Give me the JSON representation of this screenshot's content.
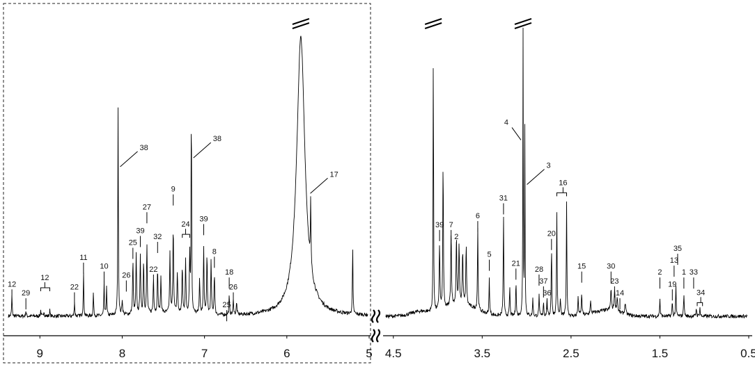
{
  "chart_data": {
    "type": "line",
    "title": "",
    "xlabel": "",
    "ylabel": "",
    "x_axis_reversed": true,
    "x_axis_broken": true,
    "grid": false,
    "left_panel": {
      "xlim": [
        9.4,
        5.0
      ],
      "boxed": true
    },
    "right_panel": {
      "xlim": [
        4.6,
        0.5
      ]
    },
    "tick_labels": [
      {
        "panel": "left",
        "value": 9,
        "label": "9"
      },
      {
        "panel": "left",
        "value": 8,
        "label": "8"
      },
      {
        "panel": "left",
        "value": 7,
        "label": "7"
      },
      {
        "panel": "left",
        "value": 6,
        "label": "6"
      },
      {
        "panel": "left",
        "value": 5,
        "label": "5"
      },
      {
        "panel": "right",
        "value": 4.5,
        "label": "4.5"
      },
      {
        "panel": "right",
        "value": 3.5,
        "label": "3.5"
      },
      {
        "panel": "right",
        "value": 2.5,
        "label": "2.5"
      },
      {
        "panel": "right",
        "value": 1.5,
        "label": "1.5"
      },
      {
        "panel": "right",
        "value": 0.5,
        "label": "0.5"
      }
    ],
    "peaks": [
      {
        "panel": "left",
        "ppm": 9.34,
        "height": 0.07,
        "width": 0.004
      },
      {
        "panel": "left",
        "ppm": 9.17,
        "height": 0.02,
        "width": 0.004
      },
      {
        "panel": "left",
        "ppm": 8.99,
        "height": 0.02,
        "width": 0.004
      },
      {
        "panel": "left",
        "ppm": 8.95,
        "height": 0.02,
        "width": 0.004
      },
      {
        "panel": "left",
        "ppm": 8.88,
        "height": 0.02,
        "width": 0.004
      },
      {
        "panel": "left",
        "ppm": 8.58,
        "height": 0.05,
        "width": 0.004
      },
      {
        "panel": "left",
        "ppm": 8.47,
        "height": 0.15,
        "width": 0.004
      },
      {
        "panel": "left",
        "ppm": 8.35,
        "height": 0.08,
        "width": 0.004
      },
      {
        "panel": "left",
        "ppm": 8.22,
        "height": 0.11,
        "width": 0.004
      },
      {
        "panel": "left",
        "ppm": 8.19,
        "height": 0.1,
        "width": 0.004
      },
      {
        "panel": "left",
        "ppm": 8.05,
        "height": 0.7,
        "width": 0.004
      },
      {
        "panel": "left",
        "ppm": 8.0,
        "height": 0.05,
        "width": 0.005
      },
      {
        "panel": "left",
        "ppm": 7.87,
        "height": 0.18,
        "width": 0.005
      },
      {
        "panel": "left",
        "ppm": 7.83,
        "height": 0.2,
        "width": 0.005
      },
      {
        "panel": "left",
        "ppm": 7.78,
        "height": 0.2,
        "width": 0.005
      },
      {
        "panel": "left",
        "ppm": 7.74,
        "height": 0.18,
        "width": 0.005
      },
      {
        "panel": "left",
        "ppm": 7.7,
        "height": 0.23,
        "width": 0.005
      },
      {
        "panel": "left",
        "ppm": 7.62,
        "height": 0.12,
        "width": 0.005
      },
      {
        "panel": "left",
        "ppm": 7.57,
        "height": 0.15,
        "width": 0.005
      },
      {
        "panel": "left",
        "ppm": 7.53,
        "height": 0.12,
        "width": 0.005
      },
      {
        "panel": "left",
        "ppm": 7.42,
        "height": 0.2,
        "width": 0.005
      },
      {
        "panel": "left",
        "ppm": 7.38,
        "height": 0.3,
        "width": 0.005
      },
      {
        "panel": "left",
        "ppm": 7.33,
        "height": 0.14,
        "width": 0.005
      },
      {
        "panel": "left",
        "ppm": 7.27,
        "height": 0.16,
        "width": 0.005
      },
      {
        "panel": "left",
        "ppm": 7.23,
        "height": 0.18,
        "width": 0.005
      },
      {
        "panel": "left",
        "ppm": 7.18,
        "height": 0.2,
        "width": 0.005
      },
      {
        "panel": "left",
        "ppm": 7.16,
        "height": 0.72,
        "width": 0.004
      },
      {
        "panel": "left",
        "ppm": 7.06,
        "height": 0.12,
        "width": 0.005
      },
      {
        "panel": "left",
        "ppm": 7.01,
        "height": 0.22,
        "width": 0.005
      },
      {
        "panel": "left",
        "ppm": 6.97,
        "height": 0.2,
        "width": 0.005
      },
      {
        "panel": "left",
        "ppm": 6.92,
        "height": 0.18,
        "width": 0.005
      },
      {
        "panel": "left",
        "ppm": 6.88,
        "height": 0.14,
        "width": 0.005
      },
      {
        "panel": "left",
        "ppm": 6.7,
        "height": 0.06,
        "width": 0.005
      },
      {
        "panel": "left",
        "ppm": 6.65,
        "height": 0.05,
        "width": 0.005
      },
      {
        "panel": "left",
        "ppm": 6.61,
        "height": 0.04,
        "width": 0.005
      },
      {
        "panel": "left",
        "ppm": 5.83,
        "height": 0.94,
        "width": 0.06
      },
      {
        "panel": "left",
        "ppm": 5.71,
        "height": 0.22,
        "width": 0.004
      },
      {
        "panel": "left",
        "ppm": 5.2,
        "height": 0.23,
        "width": 0.004
      },
      {
        "panel": "right",
        "ppm": 4.05,
        "height": 0.96,
        "width": 0.003
      },
      {
        "panel": "right",
        "ppm": 3.98,
        "height": 0.22,
        "width": 0.005
      },
      {
        "panel": "right",
        "ppm": 3.94,
        "height": 0.52,
        "width": 0.004
      },
      {
        "panel": "right",
        "ppm": 3.85,
        "height": 0.25,
        "width": 0.005
      },
      {
        "panel": "right",
        "ppm": 3.79,
        "height": 0.22,
        "width": 0.005
      },
      {
        "panel": "right",
        "ppm": 3.76,
        "height": 0.2,
        "width": 0.005
      },
      {
        "panel": "right",
        "ppm": 3.72,
        "height": 0.18,
        "width": 0.005
      },
      {
        "panel": "right",
        "ppm": 3.68,
        "height": 0.2,
        "width": 0.005
      },
      {
        "panel": "right",
        "ppm": 3.55,
        "height": 0.28,
        "width": 0.004
      },
      {
        "panel": "right",
        "ppm": 3.42,
        "height": 0.12,
        "width": 0.004
      },
      {
        "panel": "right",
        "ppm": 3.26,
        "height": 0.34,
        "width": 0.004
      },
      {
        "panel": "right",
        "ppm": 3.19,
        "height": 0.1,
        "width": 0.004
      },
      {
        "panel": "right",
        "ppm": 3.12,
        "height": 0.12,
        "width": 0.004
      },
      {
        "panel": "right",
        "ppm": 3.04,
        "height": 0.96,
        "width": 0.003
      },
      {
        "panel": "right",
        "ppm": 3.02,
        "height": 0.64,
        "width": 0.003
      },
      {
        "panel": "right",
        "ppm": 2.93,
        "height": 0.06,
        "width": 0.004
      },
      {
        "panel": "right",
        "ppm": 2.86,
        "height": 0.07,
        "width": 0.004
      },
      {
        "panel": "right",
        "ppm": 2.81,
        "height": 0.05,
        "width": 0.004
      },
      {
        "panel": "right",
        "ppm": 2.77,
        "height": 0.06,
        "width": 0.004
      },
      {
        "panel": "right",
        "ppm": 2.72,
        "height": 0.24,
        "width": 0.004
      },
      {
        "panel": "right",
        "ppm": 2.66,
        "height": 0.35,
        "width": 0.004
      },
      {
        "panel": "right",
        "ppm": 2.62,
        "height": 0.06,
        "width": 0.004
      },
      {
        "panel": "right",
        "ppm": 2.55,
        "height": 0.38,
        "width": 0.004
      },
      {
        "panel": "right",
        "ppm": 2.42,
        "height": 0.06,
        "width": 0.005
      },
      {
        "panel": "right",
        "ppm": 2.38,
        "height": 0.07,
        "width": 0.005
      },
      {
        "panel": "right",
        "ppm": 2.28,
        "height": 0.04,
        "width": 0.005
      },
      {
        "panel": "right",
        "ppm": 2.05,
        "height": 0.07,
        "width": 0.006
      },
      {
        "panel": "right",
        "ppm": 2.01,
        "height": 0.07,
        "width": 0.006
      },
      {
        "panel": "right",
        "ppm": 1.98,
        "height": 0.05,
        "width": 0.006
      },
      {
        "panel": "right",
        "ppm": 1.89,
        "height": 0.04,
        "width": 0.006
      },
      {
        "panel": "right",
        "ppm": 1.5,
        "height": 0.06,
        "width": 0.004
      },
      {
        "panel": "right",
        "ppm": 1.36,
        "height": 0.05,
        "width": 0.004
      },
      {
        "panel": "right",
        "ppm": 1.32,
        "height": 0.1,
        "width": 0.004
      },
      {
        "panel": "right",
        "ppm": 1.23,
        "height": 0.08,
        "width": 0.004
      },
      {
        "panel": "right",
        "ppm": 1.09,
        "height": 0.03,
        "width": 0.004
      },
      {
        "panel": "right",
        "ppm": 1.05,
        "height": 0.03,
        "width": 0.004
      }
    ],
    "annotations": [
      {
        "panel": "left",
        "ppm": 9.34,
        "level": 0.1,
        "text": "12"
      },
      {
        "panel": "left",
        "ppm": 9.17,
        "level": 0.07,
        "text": "29"
      },
      {
        "panel": "left",
        "ppm": 8.94,
        "level": 0.11,
        "text": "12",
        "bracket": [
          8.99,
          8.88
        ]
      },
      {
        "panel": "left",
        "ppm": 8.58,
        "level": 0.09,
        "text": "22"
      },
      {
        "panel": "left",
        "ppm": 8.47,
        "level": 0.19,
        "text": "11"
      },
      {
        "panel": "left",
        "ppm": 8.22,
        "level": 0.16,
        "text": "10"
      },
      {
        "panel": "left",
        "ppm": 7.95,
        "level": 0.13,
        "text": "26"
      },
      {
        "panel": "left",
        "ppm": 7.87,
        "level": 0.24,
        "text": "25"
      },
      {
        "panel": "left",
        "ppm": 7.78,
        "level": 0.28,
        "text": "39"
      },
      {
        "panel": "left",
        "ppm": 7.7,
        "level": 0.36,
        "text": "27"
      },
      {
        "panel": "left",
        "ppm": 7.62,
        "level": 0.15,
        "text": "22"
      },
      {
        "panel": "left",
        "ppm": 7.57,
        "level": 0.26,
        "text": "32"
      },
      {
        "panel": "left",
        "ppm": 7.38,
        "level": 0.42,
        "text": "9"
      },
      {
        "panel": "left",
        "ppm": 7.23,
        "level": 0.29,
        "text": "24",
        "bracket": [
          7.27,
          7.18
        ]
      },
      {
        "panel": "left",
        "ppm": 7.01,
        "level": 0.32,
        "text": "39"
      },
      {
        "panel": "left",
        "ppm": 6.88,
        "level": 0.21,
        "text": "8"
      },
      {
        "panel": "left",
        "ppm": 6.7,
        "level": 0.14,
        "text": "18"
      },
      {
        "panel": "left",
        "ppm": 6.65,
        "level": 0.09,
        "text": "26"
      },
      {
        "panel": "left",
        "ppm": 6.73,
        "level": 0.03,
        "text": "25"
      },
      {
        "panel": "right",
        "ppm": 3.98,
        "level": 0.3,
        "text": "39"
      },
      {
        "panel": "right",
        "ppm": 3.85,
        "level": 0.3,
        "text": "7"
      },
      {
        "panel": "right",
        "ppm": 3.79,
        "level": 0.26,
        "text": "2"
      },
      {
        "panel": "right",
        "ppm": 3.55,
        "level": 0.33,
        "text": "6"
      },
      {
        "panel": "right",
        "ppm": 3.42,
        "level": 0.2,
        "text": "5"
      },
      {
        "panel": "right",
        "ppm": 3.26,
        "level": 0.39,
        "text": "31"
      },
      {
        "panel": "right",
        "ppm": 3.12,
        "level": 0.17,
        "text": "21"
      },
      {
        "panel": "right",
        "ppm": 2.86,
        "level": 0.15,
        "text": "28"
      },
      {
        "panel": "right",
        "ppm": 2.81,
        "level": 0.11,
        "text": "37"
      },
      {
        "panel": "right",
        "ppm": 2.77,
        "level": 0.07,
        "text": "36"
      },
      {
        "panel": "right",
        "ppm": 2.72,
        "level": 0.27,
        "text": "20"
      },
      {
        "panel": "right",
        "ppm": 2.59,
        "level": 0.43,
        "text": "16",
        "bracket": [
          2.66,
          2.55
        ]
      },
      {
        "panel": "right",
        "ppm": 2.38,
        "level": 0.16,
        "text": "15"
      },
      {
        "panel": "right",
        "ppm": 2.05,
        "level": 0.16,
        "text": "30"
      },
      {
        "panel": "right",
        "ppm": 2.01,
        "level": 0.11,
        "text": "23"
      },
      {
        "panel": "right",
        "ppm": 1.95,
        "level": 0.07,
        "text": "14"
      },
      {
        "panel": "right",
        "ppm": 1.5,
        "level": 0.14,
        "text": "2"
      },
      {
        "panel": "right",
        "ppm": 1.36,
        "level": 0.1,
        "text": "19"
      },
      {
        "panel": "right",
        "ppm": 1.34,
        "level": 0.18,
        "text": "13"
      },
      {
        "panel": "right",
        "ppm": 1.3,
        "level": 0.22,
        "text": "35"
      },
      {
        "panel": "right",
        "ppm": 1.23,
        "level": 0.14,
        "text": "1"
      },
      {
        "panel": "right",
        "ppm": 1.12,
        "level": 0.14,
        "text": "33"
      },
      {
        "panel": "right",
        "ppm": 1.04,
        "level": 0.06,
        "text": "34",
        "bracket": [
          1.08,
          1.02
        ]
      },
      {
        "panel": "left",
        "ppm": 8.05,
        "level": 0.56,
        "text": "38",
        "leader": "diag"
      },
      {
        "panel": "left",
        "ppm": 7.16,
        "level": 0.59,
        "text": "38",
        "leader": "diag"
      },
      {
        "panel": "left",
        "ppm": 5.74,
        "level": 0.47,
        "text": "17",
        "leader": "diag"
      },
      {
        "panel": "right",
        "ppm": 3.04,
        "level": 0.65,
        "text": "4",
        "leader": "diag-left"
      },
      {
        "panel": "right",
        "ppm": 3.02,
        "level": 0.5,
        "text": "3",
        "leader": "diag"
      }
    ],
    "truncated_peaks": [
      {
        "panel": "left",
        "ppm": 5.83
      },
      {
        "panel": "right",
        "ppm": 4.05
      },
      {
        "panel": "right",
        "ppm": 3.04
      }
    ]
  }
}
